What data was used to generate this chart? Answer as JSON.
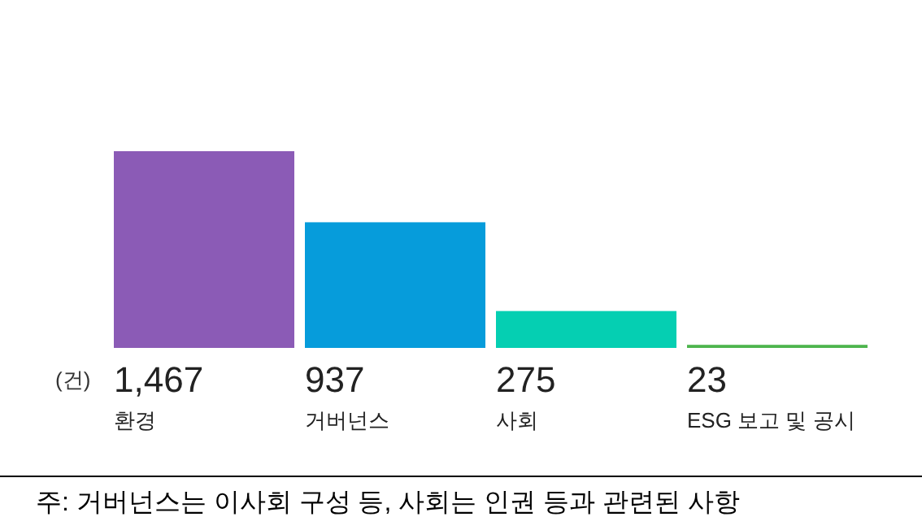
{
  "chart_data": {
    "type": "bar",
    "categories": [
      "환경",
      "거버넌스",
      "사회",
      "ESG 보고 및 공시"
    ],
    "values": [
      1467,
      937,
      275,
      23
    ],
    "colors": [
      "#8b5bb6",
      "#069cdb",
      "#05cfb2",
      "#4db54d"
    ],
    "value_labels": [
      "1,467",
      "937",
      "275",
      "23"
    ],
    "annotations": [
      "(건)",
      "주: 거버넌스는 이사회 구성 등, 사회는 인권 등과 관련된 사항"
    ]
  }
}
